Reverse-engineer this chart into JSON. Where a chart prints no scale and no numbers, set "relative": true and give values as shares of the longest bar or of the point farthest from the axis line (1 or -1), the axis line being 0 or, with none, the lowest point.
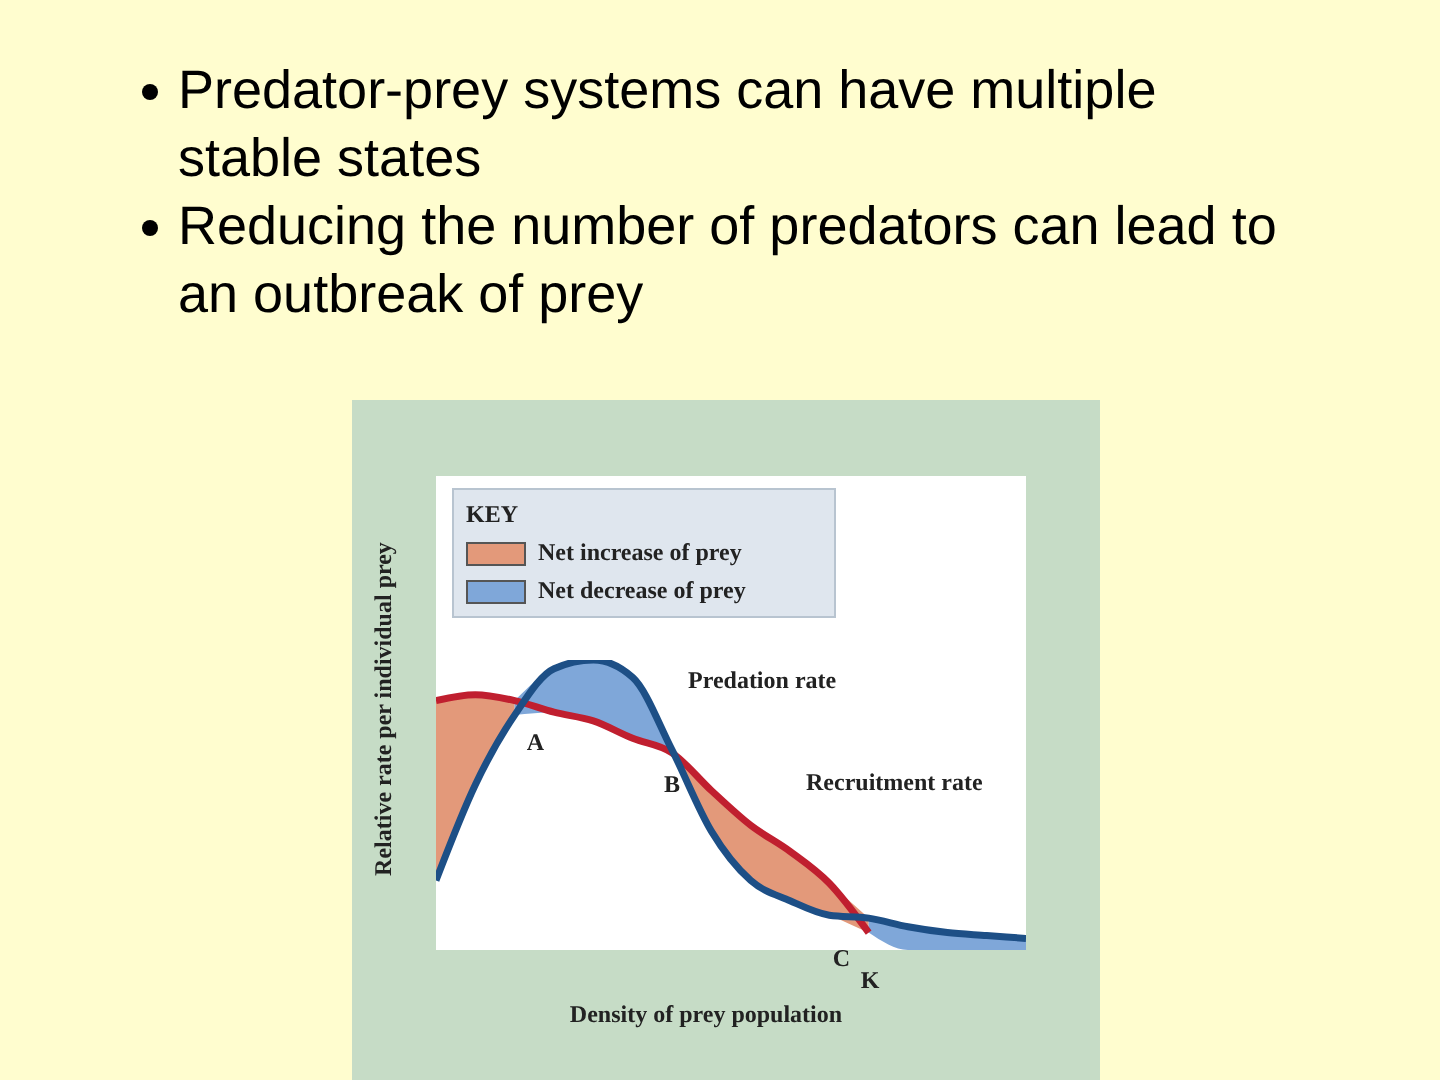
{
  "chart_data": {
    "type": "line",
    "title": "Predator-prey systems can have multiple stable states",
    "subtitle": "Reducing the number of predators can lead to an outbreak of prey",
    "xlabel": "Density of prey population",
    "ylabel": "Relative rate per individual prey",
    "legend_title": "KEY",
    "legend": "top left",
    "relative": true,
    "marker": "none",
    "categories": [
      null,
      null,
      null,
      null,
      null,
      null,
      null,
      null,
      null,
      null,
      null,
      null,
      null,
      null,
      null,
      null
    ],
    "series": [
      {
        "name": "Recruitment rate",
        "color": "#c01f2f",
        "values": [
          0.86,
          0.88,
          0.86,
          0.82,
          0.79,
          0.73,
          0.68,
          0.55,
          0.43,
          0.34,
          0.23,
          0.06,
          null,
          null,
          null,
          null
        ]
      },
      {
        "name": "Predation rate",
        "color": "#1d4f86",
        "values": [
          0.24,
          0.57,
          0.81,
          0.97,
          1,
          0.94,
          0.69,
          0.41,
          0.24,
          0.17,
          0.12,
          0.11,
          0.08,
          0.06,
          0.05,
          0.04
        ]
      },
      {
        "name": "Net increase of prey",
        "type": "area",
        "color": "#e3997a",
        "values": [
          0.86,
          0.88,
          0.86,
          null,
          null,
          null,
          0.68,
          0.55,
          0.43,
          0.34,
          0.23,
          0.11,
          null,
          null,
          null,
          null
        ]
      },
      {
        "name": "Net decrease of prey",
        "type": "area",
        "color": "#7fa7d9",
        "values": [
          null,
          null,
          0.86,
          0.97,
          1,
          0.94,
          0.69,
          null,
          null,
          null,
          null,
          0.11,
          0.08,
          0.06,
          0.05,
          0.04
        ]
      }
    ],
    "annotations": [
      "A",
      "B",
      "C",
      "K"
    ]
  }
}
